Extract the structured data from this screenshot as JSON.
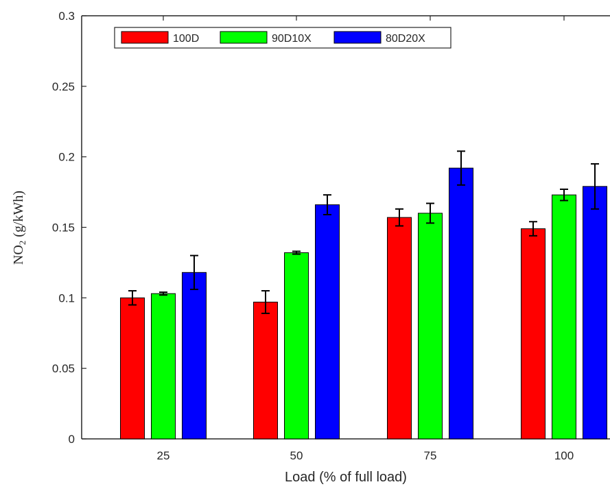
{
  "chart_data": {
    "type": "bar",
    "title": "",
    "xlabel": "Load (% of full load)",
    "ylabel_main": "NO",
    "ylabel_sub": "2",
    "ylabel_rest": " (g/kWh)",
    "categories": [
      "25",
      "50",
      "75",
      "100"
    ],
    "ylim": [
      0,
      0.3
    ],
    "yticks": [
      "0",
      "0.05",
      "0.1",
      "0.15",
      "0.2",
      "0.25",
      "0.3"
    ],
    "ytick_values": [
      0,
      0.05,
      0.1,
      0.15,
      0.2,
      0.25,
      0.3
    ],
    "grid": false,
    "legend_position": "top-left",
    "series": [
      {
        "name": "100D",
        "color": "#ff0000",
        "values": [
          0.1,
          0.097,
          0.157,
          0.149
        ],
        "errors": [
          0.005,
          0.008,
          0.006,
          0.005
        ]
      },
      {
        "name": "90D10X",
        "color": "#00ff00",
        "values": [
          0.103,
          0.132,
          0.16,
          0.173
        ],
        "errors": [
          0.001,
          0.001,
          0.007,
          0.004
        ]
      },
      {
        "name": "80D20X",
        "color": "#0000ff",
        "values": [
          0.118,
          0.166,
          0.192,
          0.179
        ],
        "errors": [
          0.012,
          0.007,
          0.012,
          0.016
        ]
      }
    ]
  }
}
